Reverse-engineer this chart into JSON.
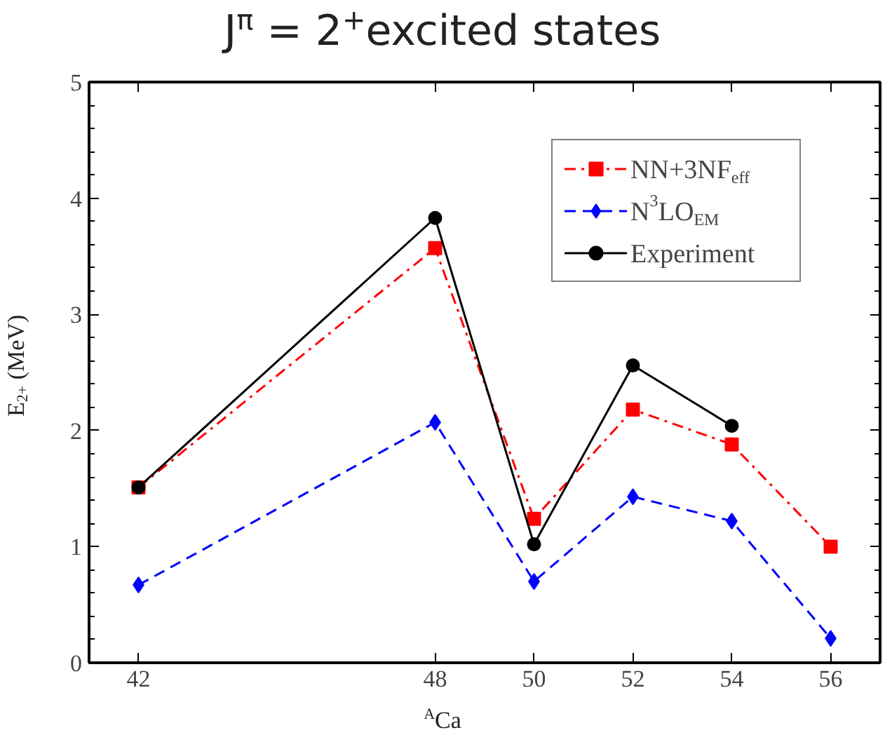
{
  "chart_data": {
    "type": "line",
    "title": "J$^{π}$ = 2$^{+}$excited states",
    "xlabel": "$^{A}$Ca",
    "ylabel": "E$_{2+}$ (MeV)",
    "x": [
      42,
      48,
      50,
      52,
      54,
      56
    ],
    "series": [
      {
        "name": "NN+3NF$_{eff}$",
        "color": "#ff0000",
        "marker": "square",
        "line_style": "dashdot",
        "values": [
          1.51,
          3.57,
          1.24,
          2.18,
          1.88,
          1.0
        ]
      },
      {
        "name": "N$^{3}$LO$_{EM}$",
        "color": "#0000ff",
        "marker": "diamond",
        "line_style": "dashed",
        "values": [
          0.67,
          2.07,
          0.7,
          1.43,
          1.22,
          0.21
        ]
      },
      {
        "name": "Experiment",
        "color": "#000000",
        "marker": "circle",
        "line_style": "solid",
        "values": [
          1.51,
          3.83,
          1.02,
          2.56,
          2.04,
          null
        ]
      }
    ],
    "xlim": [
      41,
      57
    ],
    "ylim": [
      0,
      5
    ],
    "xticks": [
      42,
      48,
      50,
      52,
      54,
      56
    ],
    "yticks": [
      0,
      1,
      2,
      3,
      4,
      5
    ],
    "grid": false,
    "legend": "top right"
  }
}
